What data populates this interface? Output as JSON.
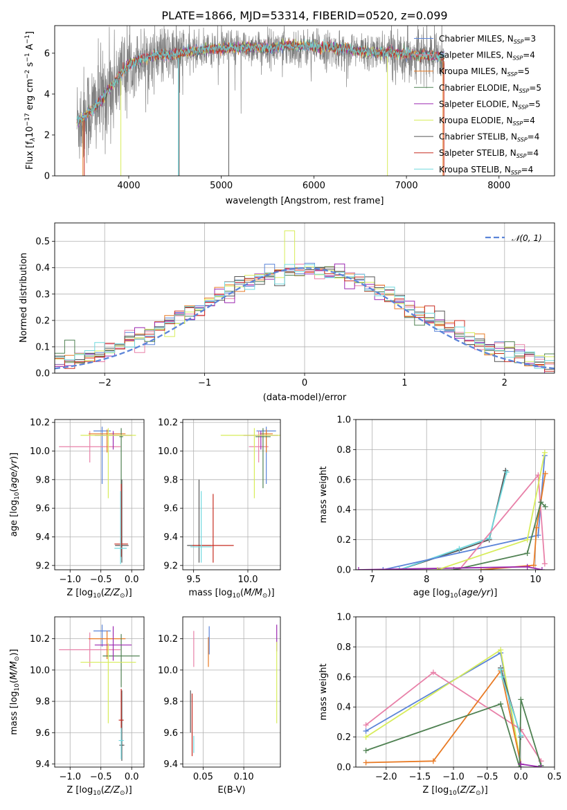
{
  "colors": {
    "chabrier_miles": "#5b84d8",
    "salpeter_miles": "#e880a8",
    "kroupa_miles": "#e87a24",
    "chabrier_elodie": "#4f8152",
    "salpeter_elodie": "#9b27b0",
    "kroupa_elodie": "#d7ec5a",
    "chabrier_stelib": "#555555",
    "salpeter_stelib": "#c72b20",
    "kroupa_stelib": "#6fd8de",
    "data": "#808080",
    "gaussian": "#5b84d8"
  },
  "chart_data": [
    {
      "type": "line",
      "title": "PLATE=1866, MJD=53314, FIBERID=0520, z=0.099",
      "xlabel": "wavelength [Angstrom, rest frame]",
      "ylabel_main": "Flux [f",
      "ylabel_sub": "λ",
      "ylabel_rest": "10",
      "ylabel_exp": "−17",
      "ylabel_units": " erg cm",
      "ylabel_exp2": "−2",
      "ylabel_s": " s",
      "ylabel_exp3": "−1",
      "ylabel_a": " A",
      "ylabel_exp4": "−1",
      "ylabel_end": "]",
      "xlim": [
        3200,
        8600
      ],
      "ylim": [
        0,
        7.35
      ],
      "xticks": [
        "4000",
        "5000",
        "6000",
        "7000",
        "8000"
      ],
      "yticks": [
        "0",
        "2",
        "4",
        "6"
      ],
      "legend_position": "right",
      "legend": [
        {
          "pre": "Chabrier MILES, N",
          "sub": "SSP",
          "post": "=3",
          "key": "chabrier_miles"
        },
        {
          "pre": "Salpeter MILES, N",
          "sub": "SSP",
          "post": "=4",
          "key": "salpeter_miles"
        },
        {
          "pre": "Kroupa MILES, N",
          "sub": "SSP",
          "post": "=5",
          "key": "kroupa_miles"
        },
        {
          "pre": "Chabrier ELODIE, N",
          "sub": "SSP",
          "post": "=5",
          "key": "chabrier_elodie"
        },
        {
          "pre": "Salpeter ELODIE, N",
          "sub": "SSP",
          "post": "=5",
          "key": "salpeter_elodie"
        },
        {
          "pre": "Kroupa ELODIE, N",
          "sub": "SSP",
          "post": "=4",
          "key": "kroupa_elodie"
        },
        {
          "pre": "Chabrier STELIB, N",
          "sub": "SSP",
          "post": "=4",
          "key": "chabrier_stelib"
        },
        {
          "pre": "Salpeter STELIB, N",
          "sub": "SSP",
          "post": "=4",
          "key": "salpeter_stelib"
        },
        {
          "pre": "Kroupa STELIB, N",
          "sub": "SSP",
          "post": "=4",
          "key": "kroupa_stelib"
        }
      ],
      "continuum": {
        "x": [
          3440,
          3500,
          3600,
          3700,
          3800,
          3900,
          3980,
          4050,
          4150,
          4300,
          4500,
          4700,
          4900,
          5100,
          5300,
          5500,
          5700,
          5900,
          6100,
          6300,
          6500,
          6700,
          6900,
          7100,
          7300,
          7400
        ],
        "y": [
          2.65,
          2.85,
          3.2,
          3.7,
          4.3,
          4.9,
          5.35,
          5.55,
          5.75,
          5.9,
          5.95,
          6.1,
          6.2,
          6.25,
          6.3,
          6.25,
          6.3,
          6.25,
          6.2,
          6.15,
          6.1,
          6.05,
          6.0,
          5.95,
          5.85,
          5.8
        ]
      },
      "model_dips": [
        {
          "x": 3505,
          "key": "kroupa_miles"
        },
        {
          "x": 3520,
          "key": "salpeter_stelib"
        },
        {
          "x": 3915,
          "key": "kroupa_elodie"
        },
        {
          "x": 4535,
          "key": "kroupa_stelib"
        },
        {
          "x": 4545,
          "key": "chabrier_stelib"
        },
        {
          "x": 5080,
          "key": "chabrier_stelib"
        },
        {
          "x": 6795,
          "key": "kroupa_elodie"
        },
        {
          "x": 7395,
          "key": "kroupa_miles"
        },
        {
          "x": 7405,
          "key": "salpeter_stelib"
        }
      ]
    },
    {
      "type": "histogram",
      "xlabel": "(data-model)/error",
      "ylabel": "Normed distribution",
      "xlim": [
        -2.5,
        2.5
      ],
      "ylim": [
        0,
        0.57
      ],
      "xticks": [
        "−2",
        "−1",
        "0",
        "1",
        "2"
      ],
      "yticks": [
        "0.0",
        "0.1",
        "0.2",
        "0.3",
        "0.4",
        "0.5"
      ],
      "legend": "𝒩(0, 1)",
      "legend_position": "top-right",
      "bin_width": 0.1
    },
    {
      "type": "scatter",
      "xlabel": "Z [log10(Z/Z⊙)]",
      "xlabel_parts": [
        "Z [log",
        "10",
        "(",
        "Z/Z",
        "⊙",
        ")]"
      ],
      "ylabel_parts": [
        "age  [log",
        "10",
        "(",
        "age/yr",
        ")]"
      ],
      "xlim": [
        -1.25,
        0.2
      ],
      "ylim": [
        9.17,
        10.22
      ],
      "xticks": [
        "−1.0",
        "−0.5",
        "0.0"
      ],
      "yticks": [
        "9.2",
        "9.4",
        "9.6",
        "9.8",
        "10.0",
        "10.2"
      ],
      "points": [
        {
          "key": "chabrier_miles",
          "x": -0.48,
          "xerr": 0.14,
          "y": 10.14,
          "yerr": [
            0.37,
            0.03
          ]
        },
        {
          "key": "salpeter_miles",
          "x": -0.68,
          "xerr": 0.5,
          "y": 10.03,
          "yerr": [
            0.11,
            0.11
          ]
        },
        {
          "key": "kroupa_miles",
          "x": -0.4,
          "xerr": 0.3,
          "y": 10.12,
          "yerr": [
            0.13,
            0.03
          ]
        },
        {
          "key": "chabrier_elodie",
          "x": -0.17,
          "xerr": 0.03,
          "y": 10.1,
          "yerr": [
            0.36,
            0.06
          ]
        },
        {
          "key": "salpeter_elodie",
          "x": -0.3,
          "xerr": 0.3,
          "y": 10.11,
          "yerr": [
            0.1,
            0.03
          ]
        },
        {
          "key": "kroupa_elodie",
          "x": -0.38,
          "xerr": 0.45,
          "y": 10.11,
          "yerr": [
            0.44,
            0.05
          ]
        },
        {
          "key": "chabrier_stelib",
          "x": -0.16,
          "xerr": 0.11,
          "y": 9.34,
          "yerr": [
            0.12,
            0.46
          ]
        },
        {
          "key": "salpeter_stelib",
          "x": -0.17,
          "xerr": 0.11,
          "y": 9.35,
          "yerr": [
            0.09,
            0.42
          ]
        },
        {
          "key": "kroupa_stelib",
          "x": -0.18,
          "xerr": 0.1,
          "y": 9.32,
          "yerr": [
            0.11,
            0.4
          ]
        }
      ]
    },
    {
      "type": "scatter",
      "xlabel_parts": [
        "mass [log",
        "10",
        "(",
        "M/M",
        "⊙",
        ")]"
      ],
      "xlim": [
        9.4,
        10.3
      ],
      "ylim": [
        9.17,
        10.22
      ],
      "xticks": [
        "9.5",
        "10.0"
      ],
      "yticks": [
        "9.2",
        "9.4",
        "9.6",
        "9.8",
        "10.0",
        "10.2"
      ],
      "points": [
        {
          "key": "chabrier_miles",
          "x": 10.17,
          "xerr": 0.09,
          "y": 10.14,
          "yerr": [
            0.37,
            0.03
          ]
        },
        {
          "key": "salpeter_miles",
          "x": 10.1,
          "xerr": 0.09,
          "y": 10.03,
          "yerr": [
            0.11,
            0.11
          ]
        },
        {
          "key": "kroupa_miles",
          "x": 10.17,
          "xerr": 0.06,
          "y": 10.12,
          "yerr": [
            0.13,
            0.03
          ]
        },
        {
          "key": "chabrier_elodie",
          "x": 10.14,
          "xerr": 0.07,
          "y": 10.1,
          "yerr": [
            0.36,
            0.06
          ]
        },
        {
          "key": "salpeter_elodie",
          "x": 10.12,
          "xerr": 0.16,
          "y": 10.11,
          "yerr": [
            0.1,
            0.03
          ]
        },
        {
          "key": "kroupa_elodie",
          "x": 10.06,
          "xerr": 0.31,
          "y": 10.11,
          "yerr": [
            0.44,
            0.05
          ]
        },
        {
          "key": "chabrier_stelib",
          "x": 9.55,
          "xerr": 0.11,
          "y": 9.34,
          "yerr": [
            0.12,
            0.46
          ]
        },
        {
          "key": "salpeter_stelib",
          "x": 9.68,
          "xerr": 0.19,
          "y": 9.34,
          "yerr": [
            0.12,
            0.36
          ]
        },
        {
          "key": "kroupa_stelib",
          "x": 9.57,
          "xerr": 0.1,
          "y": 9.33,
          "yerr": [
            0.11,
            0.39
          ]
        }
      ]
    },
    {
      "type": "line",
      "xlabel_parts": [
        "age  [log",
        "10",
        "(",
        "age/yr",
        ")]"
      ],
      "ylabel": "mass weight",
      "xlim": [
        6.7,
        10.35
      ],
      "ylim": [
        0,
        1.0
      ],
      "xticks": [
        "7",
        "8",
        "9",
        "10"
      ],
      "yticks": [
        "0.0",
        "0.2",
        "0.4",
        "0.6",
        "0.8",
        "1.0"
      ],
      "series": [
        {
          "key": "chabrier_stelib",
          "x": [
            7.5,
            8.6,
            9.15,
            9.45
          ],
          "y": [
            0.0,
            0.13,
            0.2,
            0.66
          ]
        },
        {
          "key": "kroupa_stelib",
          "x": [
            7.5,
            8.6,
            9.15,
            9.47
          ],
          "y": [
            0.0,
            0.14,
            0.21,
            0.65
          ]
        },
        {
          "key": "chabrier_miles",
          "x": [
            7.2,
            10.05,
            10.17
          ],
          "y": [
            0.0,
            0.23,
            0.76
          ]
        },
        {
          "key": "salpeter_miles",
          "x": [
            8.6,
            10.05,
            10.17
          ],
          "y": [
            0.0,
            0.63,
            0.04
          ]
        },
        {
          "key": "kroupa_miles",
          "x": [
            9.0,
            9.97,
            10.02,
            10.18
          ],
          "y": [
            0.0,
            0.03,
            0.28,
            0.64
          ]
        },
        {
          "key": "chabrier_elodie",
          "x": [
            8.5,
            9.85,
            10.1,
            10.18
          ],
          "y": [
            0.0,
            0.11,
            0.45,
            0.42
          ]
        },
        {
          "key": "salpeter_elodie",
          "x": [
            6.75,
            9.85,
            10.12
          ],
          "y": [
            0.0,
            0.02,
            0.0
          ]
        },
        {
          "key": "kroupa_elodie",
          "x": [
            8.2,
            9.85,
            10.17
          ],
          "y": [
            0.0,
            0.2,
            0.78
          ]
        }
      ]
    },
    {
      "type": "scatter",
      "xlabel_parts": [
        "Z [log",
        "10",
        "(",
        "Z/Z",
        "⊙",
        ")]"
      ],
      "ylabel_parts": [
        "mass [log",
        "10",
        "(",
        "M/M",
        "⊙",
        ")]"
      ],
      "xlim": [
        -1.25,
        0.2
      ],
      "ylim": [
        9.38,
        10.34
      ],
      "xticks": [
        "−1.0",
        "−0.5",
        "0.0"
      ],
      "yticks": [
        "9.4",
        "9.6",
        "9.8",
        "10.0",
        "10.2"
      ],
      "points": [
        {
          "key": "chabrier_miles",
          "x": -0.48,
          "xerr": 0.14,
          "y": 10.25,
          "yerr": [
            0.1,
            0.04
          ]
        },
        {
          "key": "salpeter_miles",
          "x": -0.68,
          "xerr": 0.5,
          "y": 10.13,
          "yerr": [
            0.11,
            0.11
          ]
        },
        {
          "key": "kroupa_miles",
          "x": -0.4,
          "xerr": 0.3,
          "y": 10.2,
          "yerr": [
            0.13,
            0.05
          ]
        },
        {
          "key": "chabrier_elodie",
          "x": -0.17,
          "xerr": 0.3,
          "y": 10.09,
          "yerr": [
            0.2,
            0.14
          ]
        },
        {
          "key": "salpeter_elodie",
          "x": -0.3,
          "xerr": 0.3,
          "y": 10.16,
          "yerr": [
            0.1,
            0.12
          ]
        },
        {
          "key": "kroupa_elodie",
          "x": -0.38,
          "xerr": 0.45,
          "y": 10.05,
          "yerr": [
            0.39,
            0.12
          ]
        },
        {
          "key": "chabrier_stelib",
          "x": -0.16,
          "xerr": 0.04,
          "y": 9.52,
          "yerr": [
            0.1,
            0.35
          ]
        },
        {
          "key": "salpeter_stelib",
          "x": -0.17,
          "xerr": 0.04,
          "y": 9.68,
          "yerr": [
            0.12,
            0.2
          ]
        },
        {
          "key": "kroupa_stelib",
          "x": -0.17,
          "xerr": 0.04,
          "y": 9.55,
          "yerr": [
            0.12,
            0.08
          ]
        }
      ]
    },
    {
      "type": "scatter",
      "xlabel": "E(B-V)",
      "xlim": [
        0.025,
        0.145
      ],
      "ylim": [
        9.38,
        10.34
      ],
      "xticks": [
        "0.05",
        "0.10"
      ],
      "yticks": [
        "9.4",
        "9.6",
        "9.8",
        "10.0",
        "10.2"
      ],
      "points": [
        {
          "key": "chabrier_stelib",
          "x": 0.0345,
          "y0": 9.6,
          "y1": 9.87
        },
        {
          "key": "salpeter_stelib",
          "x": 0.0365,
          "y0": 9.45,
          "y1": 9.85
        },
        {
          "key": "kroupa_stelib",
          "x": 0.0385,
          "y0": 9.47,
          "y1": 9.58
        },
        {
          "key": "salpeter_miles",
          "x": 0.0385,
          "y0": 10.02,
          "y1": 10.25
        },
        {
          "key": "kroupa_miles",
          "x": 0.0565,
          "y0": 10.02,
          "y1": 10.21
        },
        {
          "key": "chabrier_miles",
          "x": 0.0575,
          "y0": 10.1,
          "y1": 10.28
        },
        {
          "key": "salpeter_elodie",
          "x": 0.1405,
          "y0": 10.12,
          "y1": 10.29
        },
        {
          "key": "kroupa_elodie",
          "x": 0.1405,
          "y0": 9.66,
          "y1": 10.18
        }
      ]
    },
    {
      "type": "line",
      "xlabel_parts": [
        "Z [log",
        "10",
        "(",
        "Z/Z",
        "⊙",
        ")]"
      ],
      "ylabel": "mass weight",
      "xlim": [
        -2.45,
        0.5
      ],
      "ylim": [
        0,
        1.0
      ],
      "xticks": [
        "−2.0",
        "−1.5",
        "−1.0",
        "−0.5",
        "0.0",
        "0.5"
      ],
      "yticks": [
        "0.0",
        "0.2",
        "0.4",
        "0.6",
        "0.8",
        "1.0"
      ],
      "series": [
        {
          "key": "chabrier_miles",
          "x": [
            -2.3,
            -0.3,
            0.0
          ],
          "y": [
            0.24,
            0.76,
            0.0
          ]
        },
        {
          "key": "kroupa_elodie",
          "x": [
            -2.3,
            -0.3,
            0.0
          ],
          "y": [
            0.2,
            0.78,
            0.02
          ]
        },
        {
          "key": "salpeter_miles",
          "x": [
            -2.3,
            -1.3,
            0.0,
            0.3
          ],
          "y": [
            0.28,
            0.63,
            0.25,
            0.04
          ]
        },
        {
          "key": "kroupa_miles",
          "x": [
            -2.3,
            -1.3,
            -0.3,
            0.0
          ],
          "y": [
            0.03,
            0.04,
            0.64,
            0.02
          ]
        },
        {
          "key": "chabrier_elodie",
          "x": [
            -2.3,
            -0.3,
            -0.02,
            0.0,
            0.3
          ],
          "y": [
            0.11,
            0.42,
            0.0,
            0.45,
            0.01
          ]
        },
        {
          "key": "chabrier_stelib",
          "x": [
            -0.3,
            0.0
          ],
          "y": [
            0.66,
            0.2
          ]
        },
        {
          "key": "kroupa_stelib",
          "x": [
            -0.3,
            -0.28,
            0.0
          ],
          "y": [
            0.65,
            0.6,
            0.21
          ]
        },
        {
          "key": "salpeter_elodie",
          "x": [
            0.0,
            0.3
          ],
          "y": [
            0.02,
            0.0
          ]
        }
      ]
    }
  ]
}
